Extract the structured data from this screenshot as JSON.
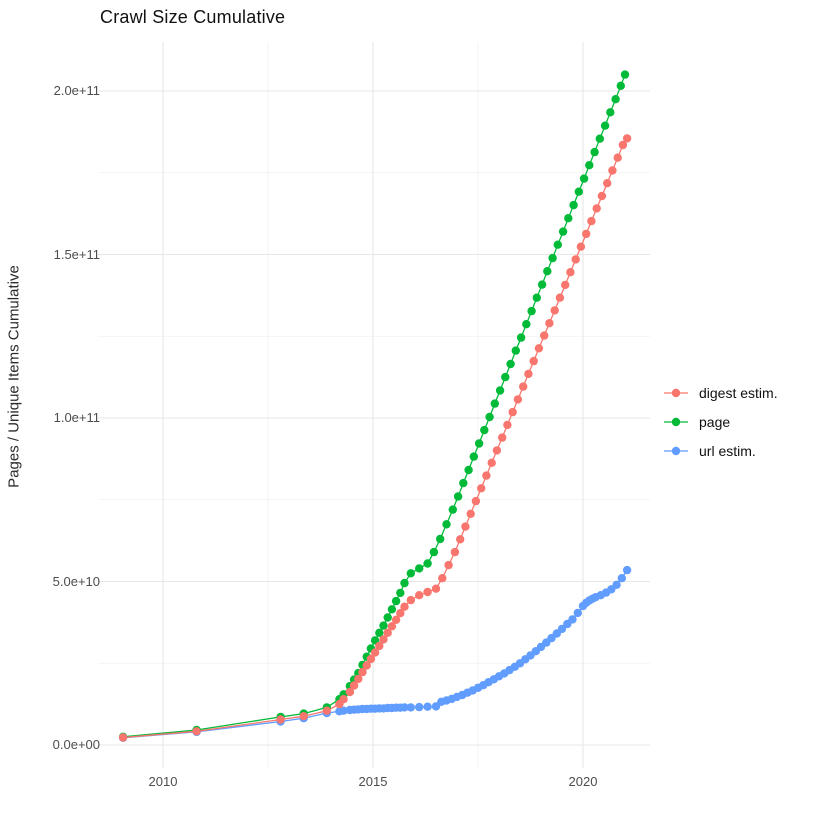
{
  "title": "Crawl Size Cumulative",
  "axes": {
    "y_label": "Pages / Unique Items Cumulative",
    "y_ticks": [
      {
        "label": "0.0e+00",
        "value": 0
      },
      {
        "label": "5.0e+10",
        "value": 50
      },
      {
        "label": "1.0e+11",
        "value": 100
      },
      {
        "label": "1.5e+11",
        "value": 150
      },
      {
        "label": "2.0e+11",
        "value": 200
      }
    ],
    "y_minor": [
      25,
      75,
      125,
      175
    ],
    "x_ticks": [
      {
        "label": "2010",
        "value": 2010
      },
      {
        "label": "2015",
        "value": 2015
      },
      {
        "label": "2020",
        "value": 2020
      }
    ],
    "x_minor": [
      2012.5,
      2017.5
    ]
  },
  "legend": [
    {
      "label": "digest estim.",
      "color": "#F8766D"
    },
    {
      "label": "page",
      "color": "#00BA38"
    },
    {
      "label": "url estim.",
      "color": "#619CFF"
    }
  ],
  "style": {
    "grid_major_color": "#E7E7E7",
    "grid_minor_color": "#F1F1F1",
    "point_radius": 4.2,
    "line_width": 1.3
  },
  "chart_data": {
    "type": "line",
    "title": "Crawl Size Cumulative",
    "xlabel": "",
    "ylabel": "Pages / Unique Items Cumulative",
    "x_unit": "year",
    "y_unit": "count (values below in billions, 1e9)",
    "xlim": [
      2008.45,
      2021.6
    ],
    "ylim_e9": [
      -9,
      215
    ],
    "grid": true,
    "legend_position": "right",
    "draw_order": [
      "page",
      "url estim.",
      "digest estim."
    ],
    "series": [
      {
        "name": "digest estim.",
        "color": "#F8766D",
        "points": [
          [
            2009.05,
            2.3
          ],
          [
            2010.8,
            4.2
          ],
          [
            2012.8,
            7.8
          ],
          [
            2013.35,
            8.8
          ],
          [
            2013.9,
            10.5
          ],
          [
            2014.2,
            12.5
          ],
          [
            2014.3,
            14
          ],
          [
            2014.45,
            16.2
          ],
          [
            2014.55,
            18.2
          ],
          [
            2014.65,
            20.2
          ],
          [
            2014.75,
            22.3
          ],
          [
            2014.85,
            24.3
          ],
          [
            2014.95,
            26.3
          ],
          [
            2015.05,
            28.3
          ],
          [
            2015.15,
            30.3
          ],
          [
            2015.25,
            32.3
          ],
          [
            2015.35,
            34.3
          ],
          [
            2015.45,
            36.3
          ],
          [
            2015.55,
            38.3
          ],
          [
            2015.65,
            40.3
          ],
          [
            2015.75,
            42.3
          ],
          [
            2015.9,
            44.3
          ],
          [
            2016.1,
            45.8
          ],
          [
            2016.3,
            46.8
          ],
          [
            2016.5,
            47.8
          ],
          [
            2016.65,
            51
          ],
          [
            2016.8,
            55
          ],
          [
            2016.95,
            59
          ],
          [
            2017.075,
            62.9
          ],
          [
            2017.2,
            66.8
          ],
          [
            2017.325,
            70.7
          ],
          [
            2017.45,
            74.6
          ],
          [
            2017.575,
            78.5
          ],
          [
            2017.7,
            82.4
          ],
          [
            2017.825,
            86.3
          ],
          [
            2017.95,
            90.1
          ],
          [
            2018.075,
            94
          ],
          [
            2018.2,
            97.9
          ],
          [
            2018.325,
            101.8
          ],
          [
            2018.45,
            105.7
          ],
          [
            2018.575,
            109.6
          ],
          [
            2018.7,
            113.5
          ],
          [
            2018.825,
            117.4
          ],
          [
            2018.95,
            121.3
          ],
          [
            2019.075,
            125.2
          ],
          [
            2019.2,
            129
          ],
          [
            2019.325,
            132.9
          ],
          [
            2019.45,
            136.8
          ],
          [
            2019.575,
            140.7
          ],
          [
            2019.7,
            144.6
          ],
          [
            2019.825,
            148.5
          ],
          [
            2019.95,
            152.4
          ],
          [
            2020.075,
            156.3
          ],
          [
            2020.2,
            160.2
          ],
          [
            2020.325,
            164.1
          ],
          [
            2020.45,
            167.9
          ],
          [
            2020.575,
            171.8
          ],
          [
            2020.7,
            175.7
          ],
          [
            2020.825,
            179.6
          ],
          [
            2020.95,
            183.5
          ],
          [
            2021.05,
            185.5
          ]
        ]
      },
      {
        "name": "page",
        "color": "#00BA38",
        "points": [
          [
            2009.05,
            2.5
          ],
          [
            2010.8,
            4.6
          ],
          [
            2012.8,
            8.6
          ],
          [
            2013.35,
            9.6
          ],
          [
            2013.9,
            11.5
          ],
          [
            2014.2,
            14
          ],
          [
            2014.3,
            15.5
          ],
          [
            2014.45,
            18
          ],
          [
            2014.55,
            20
          ],
          [
            2014.65,
            22
          ],
          [
            2014.75,
            24.5
          ],
          [
            2014.85,
            27
          ],
          [
            2014.95,
            29.5
          ],
          [
            2015.05,
            32
          ],
          [
            2015.15,
            34.3
          ],
          [
            2015.25,
            36.5
          ],
          [
            2015.35,
            39
          ],
          [
            2015.45,
            41.5
          ],
          [
            2015.55,
            44
          ],
          [
            2015.65,
            46.5
          ],
          [
            2015.75,
            49.5
          ],
          [
            2015.9,
            52.5
          ],
          [
            2016.1,
            54
          ],
          [
            2016.3,
            55.5
          ],
          [
            2016.45,
            59
          ],
          [
            2016.6,
            63
          ],
          [
            2016.75,
            67.5
          ],
          [
            2016.9,
            72
          ],
          [
            2017.025,
            76
          ],
          [
            2017.15,
            80.1
          ],
          [
            2017.275,
            84.1
          ],
          [
            2017.4,
            88.2
          ],
          [
            2017.525,
            92.2
          ],
          [
            2017.65,
            96.3
          ],
          [
            2017.775,
            100.3
          ],
          [
            2017.9,
            104.4
          ],
          [
            2018.025,
            108.4
          ],
          [
            2018.15,
            112.5
          ],
          [
            2018.275,
            116.5
          ],
          [
            2018.4,
            120.6
          ],
          [
            2018.525,
            124.6
          ],
          [
            2018.65,
            128.7
          ],
          [
            2018.775,
            132.7
          ],
          [
            2018.9,
            136.8
          ],
          [
            2019.025,
            140.8
          ],
          [
            2019.15,
            144.9
          ],
          [
            2019.275,
            148.9
          ],
          [
            2019.4,
            153
          ],
          [
            2019.525,
            157
          ],
          [
            2019.65,
            161.1
          ],
          [
            2019.775,
            165.1
          ],
          [
            2019.9,
            169.2
          ],
          [
            2020.025,
            173.2
          ],
          [
            2020.15,
            177.3
          ],
          [
            2020.275,
            181.3
          ],
          [
            2020.4,
            185.4
          ],
          [
            2020.525,
            189.4
          ],
          [
            2020.65,
            193.5
          ],
          [
            2020.775,
            197.5
          ],
          [
            2020.9,
            201.6
          ],
          [
            2021.0,
            205
          ]
        ]
      },
      {
        "name": "url estim.",
        "color": "#619CFF",
        "points": [
          [
            2009.05,
            2.2
          ],
          [
            2010.8,
            4.0
          ],
          [
            2012.8,
            7.2
          ],
          [
            2013.35,
            8.2
          ],
          [
            2013.9,
            9.8
          ],
          [
            2014.2,
            10.3
          ],
          [
            2014.3,
            10.5
          ],
          [
            2014.45,
            10.7
          ],
          [
            2014.55,
            10.8
          ],
          [
            2014.65,
            10.9
          ],
          [
            2014.75,
            11.0
          ],
          [
            2014.85,
            11.0
          ],
          [
            2014.95,
            11.1
          ],
          [
            2015.05,
            11.1
          ],
          [
            2015.15,
            11.2
          ],
          [
            2015.25,
            11.2
          ],
          [
            2015.35,
            11.3
          ],
          [
            2015.45,
            11.3
          ],
          [
            2015.55,
            11.4
          ],
          [
            2015.65,
            11.4
          ],
          [
            2015.75,
            11.5
          ],
          [
            2015.9,
            11.5
          ],
          [
            2016.1,
            11.6
          ],
          [
            2016.3,
            11.7
          ],
          [
            2016.5,
            11.8
          ],
          [
            2016.625,
            13.2
          ],
          [
            2016.75,
            13.6
          ],
          [
            2016.875,
            14.1
          ],
          [
            2017.0,
            14.7
          ],
          [
            2017.125,
            15.3
          ],
          [
            2017.25,
            16.0
          ],
          [
            2017.375,
            16.7
          ],
          [
            2017.5,
            17.5
          ],
          [
            2017.625,
            18.3
          ],
          [
            2017.75,
            19.2
          ],
          [
            2017.875,
            20.1
          ],
          [
            2018.0,
            21.0
          ],
          [
            2018.125,
            21.9
          ],
          [
            2018.25,
            22.9
          ],
          [
            2018.375,
            23.9
          ],
          [
            2018.5,
            25.0
          ],
          [
            2018.625,
            26.2
          ],
          [
            2018.75,
            27.4
          ],
          [
            2018.875,
            28.7
          ],
          [
            2019.0,
            30.0
          ],
          [
            2019.125,
            31.3
          ],
          [
            2019.25,
            32.7
          ],
          [
            2019.375,
            34.1
          ],
          [
            2019.5,
            35.5
          ],
          [
            2019.625,
            37.0
          ],
          [
            2019.75,
            38.4
          ],
          [
            2019.875,
            40.4
          ],
          [
            2020.0,
            42.5
          ],
          [
            2020.075,
            43.5
          ],
          [
            2020.15,
            44.2
          ],
          [
            2020.225,
            44.7
          ],
          [
            2020.3,
            45.2
          ],
          [
            2020.425,
            45.8
          ],
          [
            2020.55,
            46.6
          ],
          [
            2020.675,
            47.6
          ],
          [
            2020.8,
            49.0
          ],
          [
            2020.925,
            51.0
          ],
          [
            2021.05,
            53.5
          ]
        ]
      }
    ]
  }
}
